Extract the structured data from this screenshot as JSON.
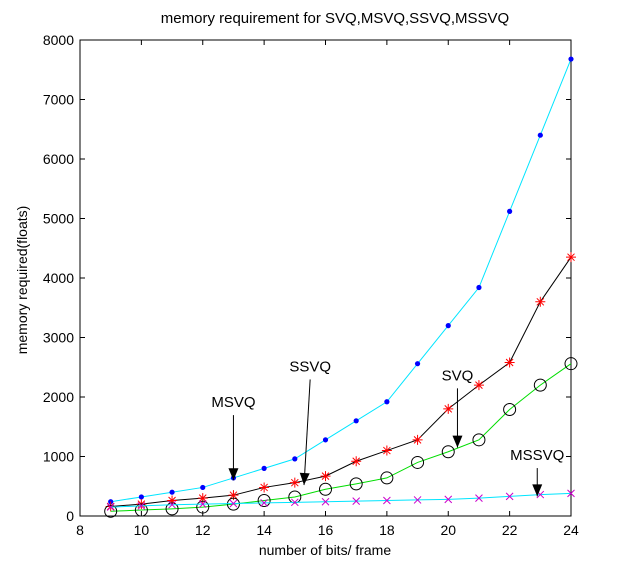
{
  "chart_data": {
    "type": "line",
    "title": "memory requirement for SVQ,MSVQ,SSVQ,MSSVQ",
    "xlabel": "number of bits/ frame",
    "ylabel": "memory required(floats)",
    "xlim": [
      8,
      24
    ],
    "ylim": [
      0,
      8000
    ],
    "xticks": [
      8,
      10,
      12,
      14,
      16,
      18,
      20,
      22,
      24
    ],
    "yticks": [
      0,
      1000,
      2000,
      3000,
      4000,
      5000,
      6000,
      7000,
      8000
    ],
    "grid": false,
    "x": [
      9,
      10,
      11,
      12,
      13,
      14,
      15,
      16,
      17,
      18,
      19,
      20,
      21,
      22,
      23,
      24
    ],
    "series": [
      {
        "name": "SVQ",
        "color": "#00e5ff",
        "marker": "dot",
        "values": [
          240,
          320,
          400,
          480,
          640,
          800,
          960,
          1280,
          1600,
          1920,
          2560,
          3200,
          3840,
          5120,
          6400,
          7680
        ]
      },
      {
        "name": "MSVQ",
        "color": "#000000",
        "marker": "star",
        "marker_color": "#ff0000",
        "values": [
          160,
          200,
          260,
          300,
          350,
          480,
          560,
          670,
          920,
          1100,
          1280,
          1800,
          2200,
          2580,
          3600,
          4350
        ]
      },
      {
        "name": "SSVQ",
        "color": "#00dd00",
        "marker": "circle",
        "marker_color": "#000000",
        "values": [
          80,
          100,
          120,
          150,
          200,
          260,
          320,
          450,
          540,
          640,
          900,
          1080,
          1280,
          1790,
          2200,
          2560
        ]
      },
      {
        "name": "MSSVQ",
        "color": "#00e5ff",
        "marker": "x",
        "marker_color": "#cc00cc",
        "values": [
          150,
          170,
          190,
          200,
          210,
          220,
          230,
          240,
          250,
          260,
          270,
          280,
          300,
          330,
          360,
          380
        ]
      }
    ],
    "annotations": [
      {
        "text": "MSVQ",
        "label_x": 13.0,
        "label_y": 1830,
        "tip_x": 13.0,
        "tip_y": 600
      },
      {
        "text": "SSVQ",
        "label_x": 15.5,
        "label_y": 2430,
        "tip_x": 15.3,
        "tip_y": 520
      },
      {
        "text": "SVQ",
        "label_x": 20.3,
        "label_y": 2280,
        "tip_x": 20.3,
        "tip_y": 1150
      },
      {
        "text": "MSSVQ",
        "label_x": 22.9,
        "label_y": 940,
        "tip_x": 22.9,
        "tip_y": 330
      }
    ]
  }
}
